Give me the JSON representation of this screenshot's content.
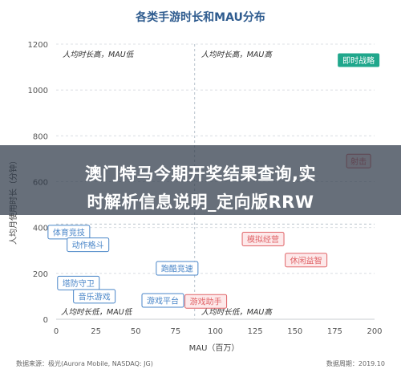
{
  "overlay": {
    "line1": "澳门特马今期开奖结果查询,实",
    "line2": "时解析信息说明_定向版RRW"
  },
  "footer": {
    "source": "数据来源：极光(Aurora Mobile, NASDAQ: JG)",
    "period": "数据周期：2019.10"
  },
  "chart_data": {
    "type": "scatter",
    "title": "各类手游时长和MAU分布",
    "xlabel": "MAU（百万）",
    "ylabel": "人均月使用时长（分钟）",
    "xlim": [
      0,
      200
    ],
    "ylim": [
      0,
      1200
    ],
    "xticks": [
      0,
      25,
      50,
      75,
      100,
      125,
      150,
      175,
      200
    ],
    "yticks": [
      0,
      200,
      400,
      600,
      800,
      1000,
      1200
    ],
    "grid": "horizontal dashed",
    "divider_x": 87,
    "divider_y": 415,
    "quadrants": [
      {
        "label": "人均时长高，MAU低",
        "position": "top-left"
      },
      {
        "label": "人均时长高，MAU高",
        "position": "top-right"
      },
      {
        "label": "人均时长低，MAU低",
        "position": "bottom-left"
      },
      {
        "label": "人均时长低，MAU高",
        "position": "bottom-right"
      }
    ],
    "points": [
      {
        "label": "即时战略",
        "x": 190,
        "y": 1130
      },
      {
        "label": "射击",
        "x": 190,
        "y": 690
      },
      {
        "label": "体育竞技",
        "x": 8,
        "y": 380
      },
      {
        "label": "动作格斗",
        "x": 20,
        "y": 325
      },
      {
        "label": "模拟经营",
        "x": 130,
        "y": 350
      },
      {
        "label": "休闲益智",
        "x": 157,
        "y": 258
      },
      {
        "label": "跑酷竞速",
        "x": 76,
        "y": 222
      },
      {
        "label": "塔防守卫",
        "x": 14,
        "y": 158
      },
      {
        "label": "音乐游戏",
        "x": 24,
        "y": 100
      },
      {
        "label": "游戏平台",
        "x": 67,
        "y": 82
      },
      {
        "label": "游戏助手",
        "x": 94,
        "y": 78
      }
    ],
    "colors": {
      "low_mau": "#4a86c8",
      "high_mau": "#e06468",
      "strategy": "#20a78c"
    }
  }
}
